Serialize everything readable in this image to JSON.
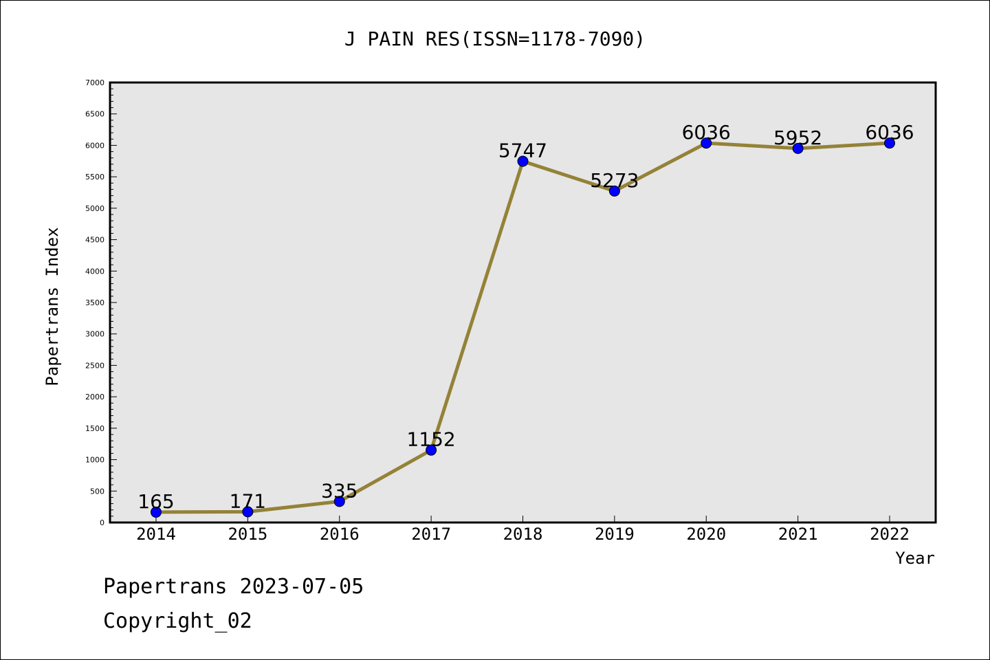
{
  "chart_data": {
    "type": "line",
    "title": "J PAIN RES(ISSN=1178-7090)",
    "xlabel": "Year",
    "ylabel": "Papertrans Index",
    "categories": [
      "2014",
      "2015",
      "2016",
      "2017",
      "2018",
      "2019",
      "2020",
      "2021",
      "2022"
    ],
    "series": [
      {
        "values": [
          165,
          171,
          335,
          1152,
          5747,
          5273,
          6036,
          5952,
          6036
        ]
      }
    ],
    "ylim": [
      0,
      7000
    ],
    "yticks": [
      "0",
      "500",
      "1000",
      "1500",
      "2000",
      "2500",
      "3000",
      "3500",
      "4000",
      "4500",
      "5000",
      "5500",
      "6000",
      "6500",
      "7000"
    ],
    "data_labels": [
      "165",
      "171",
      "335",
      "1152",
      "5747",
      "5273",
      "6036",
      "5952",
      "6036"
    ],
    "grid": false,
    "colors": {
      "line": "#948238",
      "marker": "#0000ff",
      "plot_bg": "#e6e6e6"
    }
  },
  "footer": {
    "line1": "Papertrans 2023-07-05",
    "line2": "Copyright_02"
  }
}
